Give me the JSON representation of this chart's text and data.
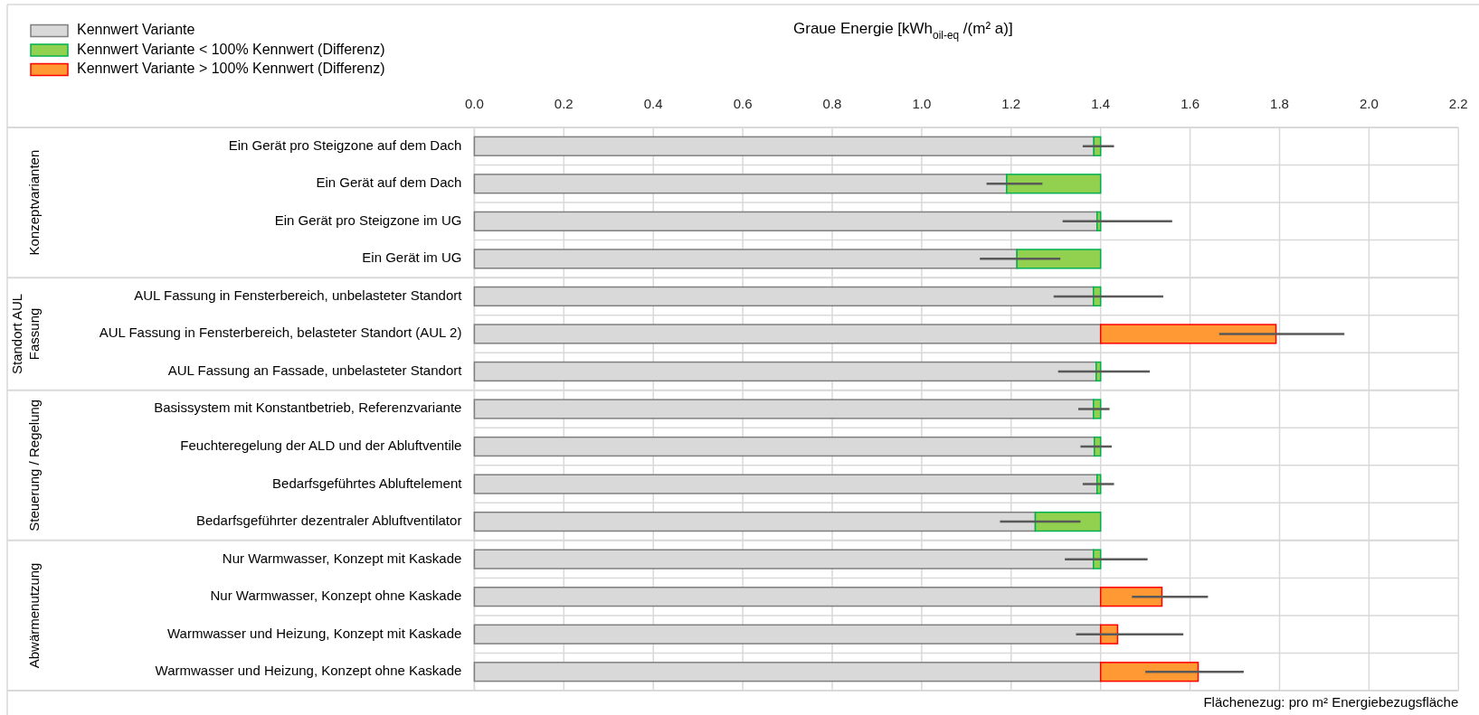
{
  "chart_data": {
    "type": "bar",
    "orientation": "horizontal",
    "stacked": true,
    "xlabel": "Graue Energie [kWh$_{oil-eq}$ /(m² a)]",
    "categories": [
      "Ein Gerät pro Steigzone auf dem Dach",
      "Ein Gerät auf dem Dach",
      "Ein Gerät pro Steigzone im UG",
      "Ein Gerät im UG",
      "AUL Fassung in Fensterbereich, unbelasteter Standort",
      "AUL Fassung in Fensterbereich, belasteter Standort (AUL 2)",
      "AUL Fassung an Fassade, unbelasteter Standort",
      "Basissystem mit Konstantbetrieb, Referenzvariante",
      "Feuchteregelung der ALD und der Abluftventile",
      "Bedarfsgeführtes Abluftelement",
      "Bedarfsgeführter dezentraler Abluftventilator",
      "Nur Warmwasser, Konzept mit Kaskade",
      "Nur Warmwasser, Konzept ohne Kaskade",
      "Warmwasser und Heizung, Konzept mit Kaskade",
      "Warmwasser und Heizung, Konzept ohne Kaskade"
    ],
    "series": [
      {
        "name": "Kennwert Variante",
        "color": "#d9d9d9",
        "values": [
          1.385,
          1.19,
          1.392,
          1.213,
          1.384,
          1.4,
          1.39,
          1.384,
          1.386,
          1.392,
          1.254,
          1.384,
          1.4,
          1.4,
          1.4
        ],
        "errors": [
          [
            1.36,
            1.43
          ],
          [
            1.145,
            1.27
          ],
          [
            1.315,
            1.56
          ],
          [
            1.13,
            1.31
          ],
          [
            1.295,
            1.54
          ],
          null,
          [
            1.305,
            1.51
          ],
          [
            1.35,
            1.42
          ],
          [
            1.355,
            1.425
          ],
          [
            1.36,
            1.43
          ],
          [
            1.175,
            1.355
          ],
          [
            1.32,
            1.505
          ],
          null,
          null,
          null
        ]
      },
      {
        "name": "Kennwert Variante < 100% Kennwert (Differenz)",
        "color": "#92d050",
        "values": [
          0.015,
          0.21,
          0.008,
          0.187,
          0.016,
          null,
          0.01,
          0.016,
          0.014,
          0.008,
          0.146,
          0.016,
          null,
          null,
          null
        ]
      },
      {
        "name": "Kennwert Variante > 100% Kennwert (Differenz)",
        "color": "#ff9933",
        "values": [
          null,
          null,
          null,
          null,
          null,
          0.392,
          null,
          null,
          null,
          null,
          null,
          null,
          0.137,
          0.038,
          0.218
        ],
        "errors": [
          null,
          null,
          null,
          null,
          null,
          [
            1.665,
            1.945
          ],
          null,
          null,
          null,
          null,
          null,
          null,
          [
            1.47,
            1.64
          ],
          [
            1.345,
            1.585
          ],
          [
            1.5,
            1.72
          ]
        ]
      }
    ],
    "xlim": [
      0,
      2.2
    ],
    "xticks": [
      {
        "value": 0,
        "label": "0.0"
      },
      0.2,
      0.4,
      0.6,
      0.8,
      {
        "value": 1,
        "label": "1.0"
      },
      1.2,
      1.4,
      1.6,
      1.8,
      {
        "value": 2,
        "label": "2.0"
      },
      2.2
    ],
    "grid": "x",
    "legend": "top left",
    "annotations": [
      "Konzeptvarianten",
      "Standort AUL Fassung",
      "Steuerung / Regelung",
      "Abwärmenutzung",
      "Flächenezug: pro m² Energiebezugsfläche"
    ]
  }
}
